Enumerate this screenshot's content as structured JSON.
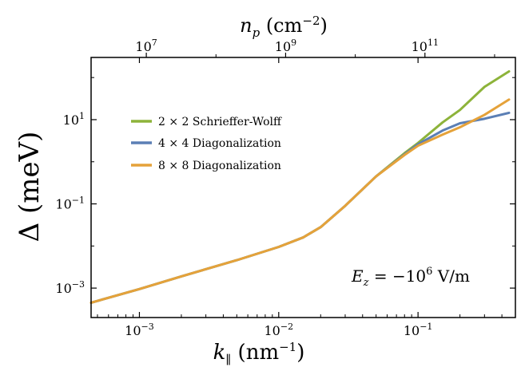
{
  "chart_data": {
    "type": "line",
    "title": "",
    "xlabel": "k_∥ (nm⁻¹)",
    "ylabel": "Δ (meV)",
    "top_xlabel": "n_p (cm⁻²)",
    "x_scale": "log",
    "y_scale": "log",
    "xlim": [
      0.00045,
      0.5
    ],
    "ylim": [
      0.0002,
      300
    ],
    "grid": false,
    "legend_position": "upper-left",
    "x_ticks": [
      {
        "value": 0.001,
        "base": "10",
        "exp": "−3"
      },
      {
        "value": 0.01,
        "base": "10",
        "exp": "−2"
      },
      {
        "value": 0.1,
        "base": "10",
        "exp": "−1"
      }
    ],
    "y_ticks": [
      {
        "value": 0.001,
        "base": "10",
        "exp": "−3"
      },
      {
        "value": 0.1,
        "base": "10",
        "exp": "−1"
      },
      {
        "value": 10,
        "base": "10",
        "exp": "1"
      }
    ],
    "top_x_ticks": [
      {
        "value": 10000000,
        "base": "10",
        "exp": "7"
      },
      {
        "value": 1000000000,
        "base": "10",
        "exp": "9"
      },
      {
        "value": 100000000000,
        "base": "10",
        "exp": "11"
      }
    ],
    "top_axis_conversion": "n_p = k_∥² / (4π) with k_∥ in cm⁻¹",
    "annotation": "E_z = −10⁶ V/m",
    "series": [
      {
        "name": "2 × 2 Schrieffer-Wolff",
        "color": "#8db33a",
        "x": [
          0.00045,
          0.001,
          0.002,
          0.005,
          0.01,
          0.015,
          0.02,
          0.03,
          0.05,
          0.08,
          0.1,
          0.15,
          0.2,
          0.3,
          0.45
        ],
        "y": [
          0.00045,
          0.00095,
          0.0019,
          0.0046,
          0.0095,
          0.016,
          0.028,
          0.09,
          0.45,
          1.6,
          2.8,
          8.6,
          17,
          60,
          140
        ]
      },
      {
        "name": "4 × 4 Diagonalization",
        "color": "#5b7fb5",
        "x": [
          0.00045,
          0.001,
          0.002,
          0.005,
          0.01,
          0.015,
          0.02,
          0.03,
          0.05,
          0.08,
          0.1,
          0.15,
          0.2,
          0.3,
          0.45
        ],
        "y": [
          0.00045,
          0.00095,
          0.0019,
          0.0046,
          0.0095,
          0.016,
          0.028,
          0.09,
          0.45,
          1.5,
          2.6,
          5.5,
          8.2,
          10.5,
          14.5
        ]
      },
      {
        "name": "8 × 8 Diagonalization",
        "color": "#e5a23a",
        "x": [
          0.00045,
          0.001,
          0.002,
          0.005,
          0.01,
          0.015,
          0.02,
          0.03,
          0.05,
          0.08,
          0.1,
          0.15,
          0.2,
          0.3,
          0.45
        ],
        "y": [
          0.00045,
          0.00095,
          0.0019,
          0.0046,
          0.0095,
          0.016,
          0.028,
          0.09,
          0.45,
          1.45,
          2.4,
          4.4,
          6.6,
          13,
          30
        ]
      }
    ]
  }
}
